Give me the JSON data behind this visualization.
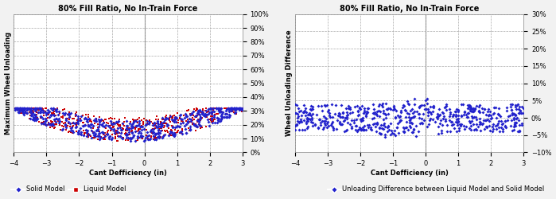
{
  "title": "80% Fill Ratio, No In-Train Force",
  "left_xlabel": "Cant Defficiency (in)",
  "left_ylabel": "Maximum Wheel Unloading",
  "right_xlabel": "Cant Defficiency (in)",
  "right_ylabel": "Wheel Unloading Difference",
  "left_xlim": [
    -4,
    3
  ],
  "left_ylim": [
    0.0,
    1.0
  ],
  "left_yticks": [
    0.0,
    0.1,
    0.2,
    0.3,
    0.4,
    0.5,
    0.6,
    0.7,
    0.8,
    0.9,
    1.0
  ],
  "right_xlim": [
    -4,
    3
  ],
  "right_ylim": [
    -0.1,
    0.3
  ],
  "right_yticks": [
    -0.1,
    -0.05,
    0.0,
    0.05,
    0.1,
    0.15,
    0.2,
    0.25,
    0.3
  ],
  "solid_color": "#2222CC",
  "liquid_color": "#CC0000",
  "diff_color": "#2222CC",
  "legend1_labels": [
    "Solid Model",
    "Liquid Model"
  ],
  "legend2_labels": [
    "Unloading Difference between Liquid Model and Solid Model"
  ],
  "background_color": "#F2F2F2",
  "plot_bg_color": "#FFFFFF",
  "grid_color": "#AAAAAA",
  "seed": 42
}
